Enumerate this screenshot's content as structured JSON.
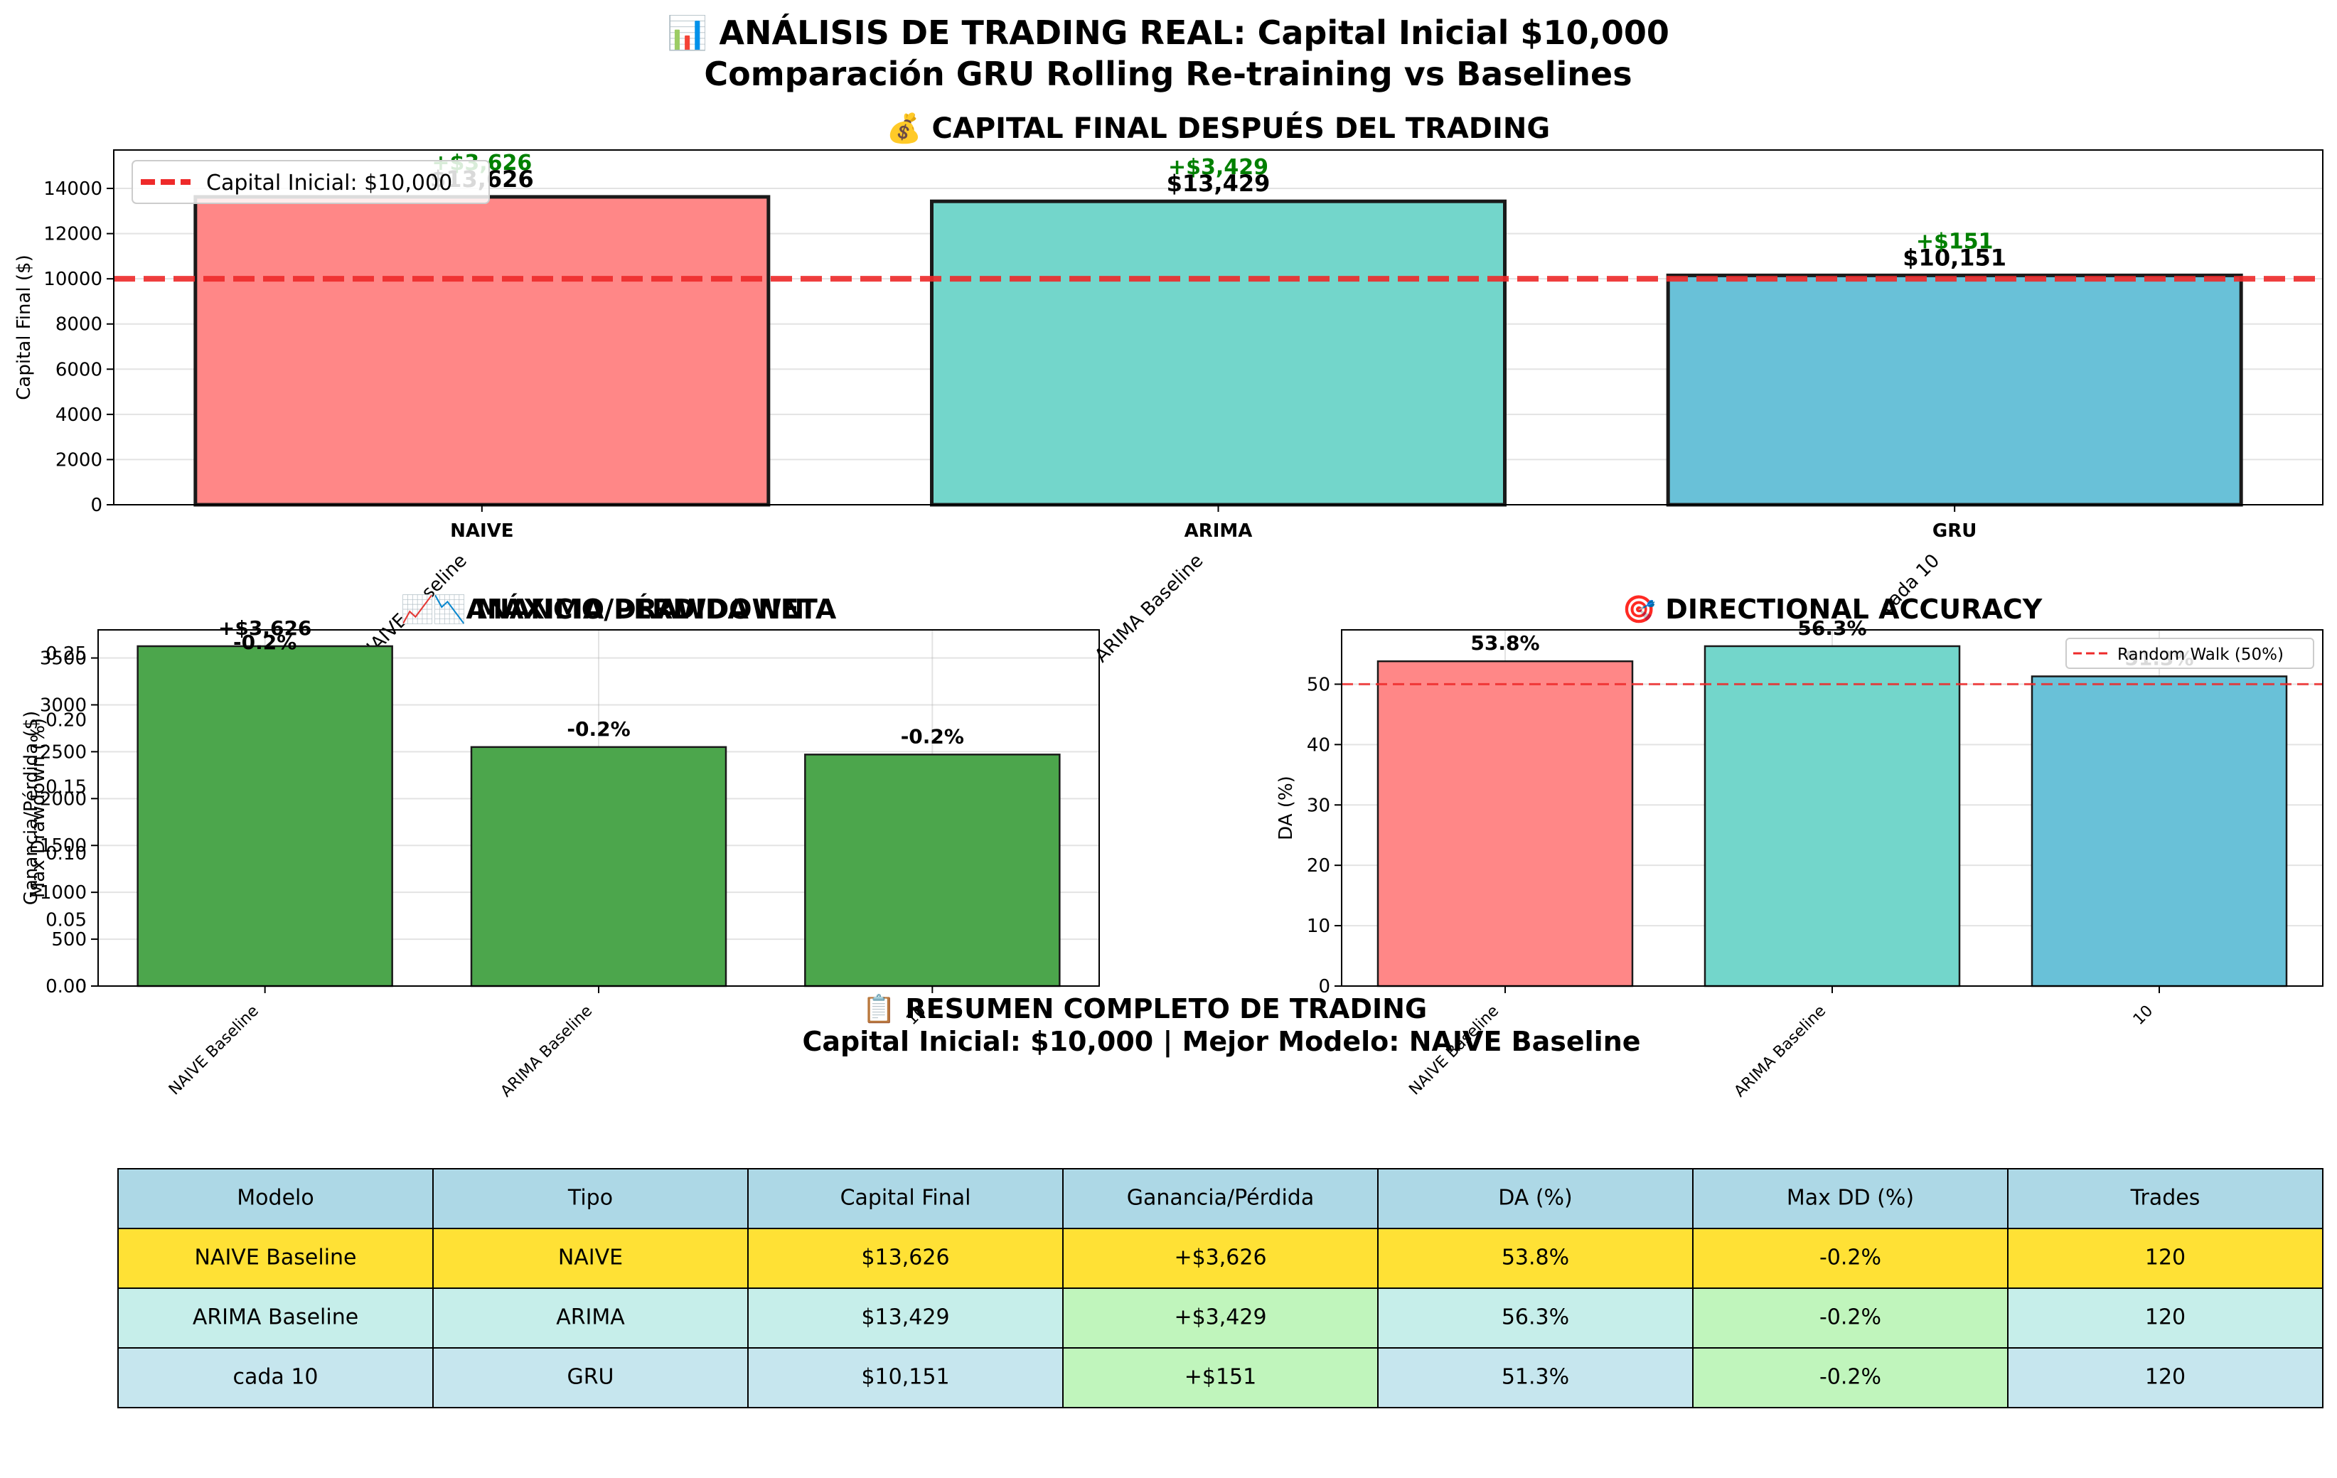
{
  "suptitle_line1": "📊 ANÁLISIS DE TRADING REAL: Capital Inicial $10,000",
  "suptitle_line2": "Comparación GRU Rolling Re-training vs Baselines",
  "colors": {
    "naive": "#ff8787",
    "arima": "#73d6cb",
    "gru": "#69c1d8",
    "green": "#4ca64c",
    "profit_text": "#008000",
    "ref_line": "#ee2a2a",
    "header": "#add8e6",
    "best_row": "#ffe135",
    "arima_row": "#c6eeea",
    "gru_row": "#c6e6ee",
    "good_cell": "#c0f5bc"
  },
  "chart_data": [
    {
      "type": "bar",
      "title": "💰 CAPITAL FINAL DESPUÉS DEL TRADING",
      "ylabel": "Capital Final ($)",
      "categories": [
        "NAIVE\nNAIVE Baseline",
        "ARIMA\nARIMA Baseline",
        "GRU\ncada 10"
      ],
      "category_main": [
        "NAIVE",
        "ARIMA",
        "GRU"
      ],
      "category_sub": [
        "NAIVE Baseline",
        "ARIMA Baseline",
        "cada 10"
      ],
      "values": [
        13626,
        13429,
        10151
      ],
      "value_labels": [
        "$13,626",
        "$13,429",
        "$10,151"
      ],
      "profit_labels": [
        "+$3,626",
        "+$3,429",
        "+$151"
      ],
      "ylim": [
        0,
        15700
      ],
      "yticks": [
        0,
        2000,
        4000,
        6000,
        8000,
        10000,
        12000,
        14000
      ],
      "reference_line": {
        "value": 10000,
        "label": "Capital Inicial: $10,000"
      },
      "legend": "top-left",
      "grid": true
    },
    {
      "type": "bar",
      "title": "📈 GANANCIA/PÉRDIDA NETA",
      "title_overlay": "📉 MÁXIMO DRAWDOWN",
      "ylabel": "Ganancia/Pérdida ($)",
      "ylabel_overlay": "Max Drawdown (%)",
      "categories": [
        "NAIVE Baseline",
        "ARIMA Baseline",
        "10"
      ],
      "values": [
        3626,
        2550,
        2470
      ],
      "value_labels": [
        "+$3,626",
        "-0.2%",
        "-0.2%"
      ],
      "overlay_label": "-0.2%",
      "ylim": [
        0,
        3800
      ],
      "yticks": [
        0,
        500,
        1000,
        1500,
        2000,
        2500,
        3000,
        3500
      ],
      "yticks_overlay": [
        "0.00",
        "0.05",
        "0.10",
        "0.15",
        "0.20",
        "0.25"
      ],
      "grid": true
    },
    {
      "type": "bar",
      "title": "🎯 DIRECTIONAL ACCURACY",
      "ylabel": "DA (%)",
      "categories": [
        "NAIVE Baseline",
        "ARIMA Baseline",
        "10"
      ],
      "values": [
        53.8,
        56.3,
        51.3
      ],
      "value_labels": [
        "53.8%",
        "56.3%",
        "51.3%"
      ],
      "ylim": [
        0,
        59
      ],
      "yticks": [
        0,
        10,
        20,
        30,
        40,
        50
      ],
      "reference_line": {
        "value": 50,
        "label": "Random Walk (50%)"
      },
      "legend": "top-right",
      "grid": true
    },
    {
      "type": "table",
      "title_line1": "📋 RESUMEN COMPLETO DE TRADING",
      "title_line2": "Capital Inicial: $10,000 | Mejor Modelo: NAIVE Baseline",
      "columns": [
        "Modelo",
        "Tipo",
        "Capital Final",
        "Ganancia/Pérdida",
        "DA (%)",
        "Max DD (%)",
        "Trades"
      ],
      "rows": [
        [
          "NAIVE Baseline",
          "NAIVE",
          "$13,626",
          "+$3,626",
          "53.8%",
          "-0.2%",
          "120"
        ],
        [
          "ARIMA Baseline",
          "ARIMA",
          "$13,429",
          "+$3,429",
          "56.3%",
          "-0.2%",
          "120"
        ],
        [
          "cada 10",
          "GRU",
          "$10,151",
          "+$151",
          "51.3%",
          "-0.2%",
          "120"
        ]
      ]
    }
  ]
}
